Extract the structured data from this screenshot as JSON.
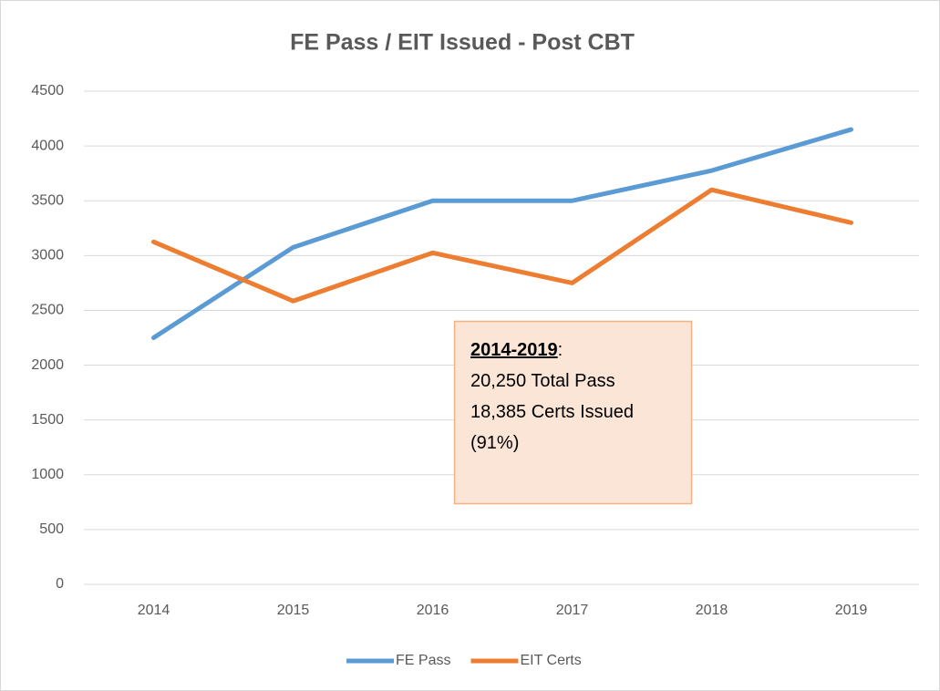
{
  "chart_data": {
    "type": "line",
    "title": "FE Pass / EIT Issued - Post CBT",
    "categories": [
      "2014",
      "2015",
      "2016",
      "2017",
      "2018",
      "2019"
    ],
    "series": [
      {
        "name": "FE Pass",
        "color": "#5b9bd5",
        "values": [
          2250,
          3075,
          3500,
          3500,
          3775,
          4150
        ]
      },
      {
        "name": "EIT Certs",
        "color": "#ed7d31",
        "values": [
          3125,
          2585,
          3025,
          2750,
          3600,
          3300
        ]
      }
    ],
    "ylim": [
      0,
      4500
    ],
    "yticks": [
      0,
      500,
      1000,
      1500,
      2000,
      2500,
      3000,
      3500,
      4000,
      4500
    ],
    "grid": true,
    "legend": "bottom",
    "annotation": {
      "heading": "2014-2019",
      "heading_suffix": ":",
      "lines": [
        "20,250 Total Pass",
        "18,385 Certs Issued",
        "(91%)"
      ]
    }
  }
}
